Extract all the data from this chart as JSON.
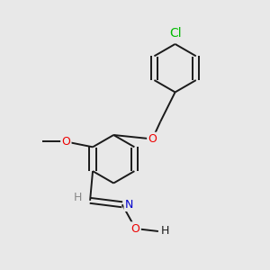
{
  "background_color": "#e8e8e8",
  "bond_color": "#1a1a1a",
  "atom_colors": {
    "Cl": "#00bb00",
    "O": "#ee0000",
    "N": "#0000cc",
    "C_gray": "#888888"
  },
  "line_width": 1.4,
  "font_size": 9,
  "figsize": [
    3.0,
    3.0
  ],
  "dpi": 100
}
